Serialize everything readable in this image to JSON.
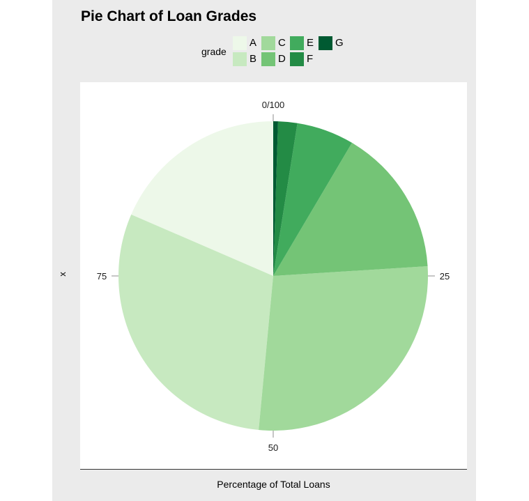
{
  "chart_data": {
    "type": "pie",
    "title": "Pie Chart of Loan Grades",
    "xlabel": "Percentage of Total Loans",
    "ylabel": "x",
    "legend_title": "grade",
    "legend_position": "top",
    "axis_ticks": [
      "0/100",
      "25",
      "50",
      "75"
    ],
    "slices": [
      {
        "label": "A",
        "value": 18.5,
        "color": "#edf8e9"
      },
      {
        "label": "B",
        "value": 30.0,
        "color": "#c7e9c0"
      },
      {
        "label": "C",
        "value": 27.5,
        "color": "#a1d99b"
      },
      {
        "label": "D",
        "value": 15.5,
        "color": "#74c476"
      },
      {
        "label": "E",
        "value": 6.0,
        "color": "#41ab5d"
      },
      {
        "label": "F",
        "value": 2.0,
        "color": "#238b45"
      },
      {
        "label": "G",
        "value": 0.5,
        "color": "#005a32"
      }
    ]
  }
}
